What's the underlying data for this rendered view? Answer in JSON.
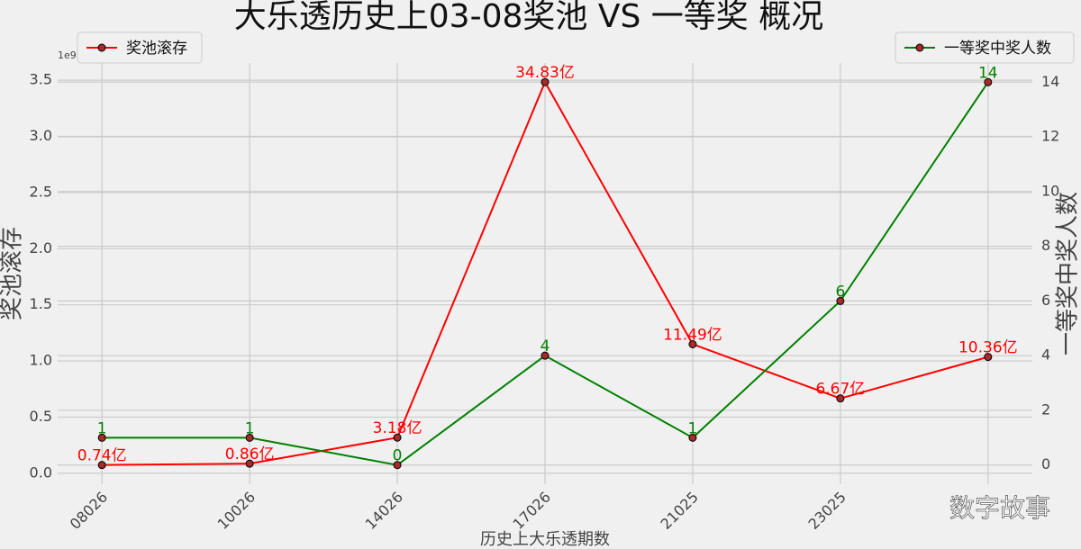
{
  "chart_data": {
    "type": "line",
    "title": "大乐透历史上03-08奖池 VS 一等奖 概况",
    "xlabel": "历史上大乐透期数",
    "ylabel": "奖池滚存",
    "y2label": "一等奖中奖人数",
    "y_offset_label": "1e9",
    "watermark": "数字故事",
    "categories": [
      "08026",
      "10026",
      "14026",
      "17026",
      "21025",
      "23025",
      null
    ],
    "ylim": [
      -0.097,
      3.653
    ],
    "yticks": [
      {
        "value": 0,
        "label": "0.0"
      },
      0.5,
      {
        "value": 1,
        "label": "1.0"
      },
      1.5,
      {
        "value": 2,
        "label": "2.0"
      },
      2.5,
      {
        "value": 3,
        "label": "3.0"
      },
      3.5
    ],
    "y2lim": [
      -0.7,
      14.7
    ],
    "y2ticks": [
      0,
      2,
      4,
      6,
      8,
      10,
      12,
      14
    ],
    "grid": true,
    "series": [
      {
        "name": "奖池滚存",
        "color": "#ff0000",
        "marker_color": "#a52a2a",
        "legend_loc": "upper left",
        "values": [
          0.074,
          0.086,
          0.318,
          3.483,
          1.149,
          0.667,
          1.036
        ],
        "value_labels": [
          "0.74亿",
          "0.86亿",
          "3.18亿",
          "34.83亿",
          "11.49亿",
          "6.67亿",
          "10.36亿"
        ]
      },
      {
        "name": "一等奖中奖人数",
        "color": "#008000",
        "marker_color": "#a52a2a",
        "legend_loc": "upper right",
        "axis": "y2",
        "values": [
          1,
          1,
          0,
          4,
          1,
          6,
          14
        ]
      }
    ]
  }
}
